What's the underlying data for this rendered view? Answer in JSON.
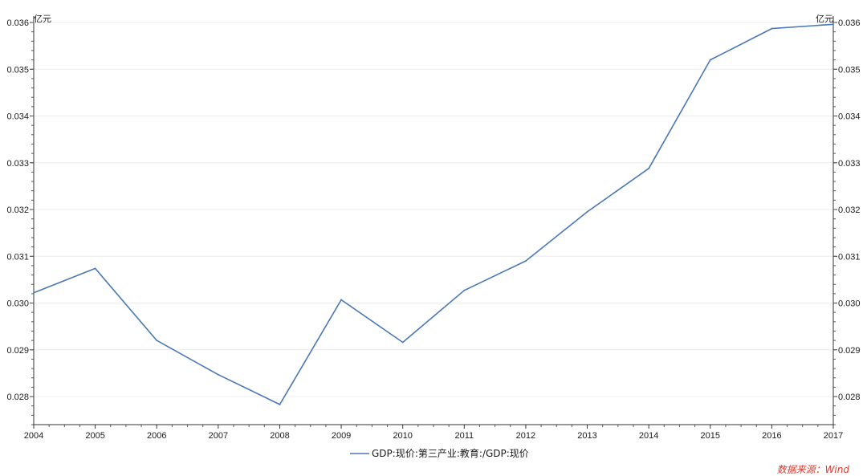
{
  "chart_data": {
    "type": "line",
    "x": [
      2004,
      2005,
      2006,
      2007,
      2008,
      2009,
      2010,
      2011,
      2012,
      2013,
      2014,
      2015,
      2016,
      2017
    ],
    "series": [
      {
        "name": "GDP:现价:第三产业:教育:/GDP:现价",
        "color": "#4a78b5",
        "values": [
          0.03022,
          0.03074,
          0.0292,
          0.02847,
          0.02783,
          0.03007,
          0.02916,
          0.03027,
          0.0309,
          0.03195,
          0.03288,
          0.0352,
          0.03587,
          0.03596
        ]
      }
    ],
    "ylim": [
      0.0274,
      0.036
    ],
    "yticks": [
      "0.028",
      "0.029",
      "0.030",
      "0.031",
      "0.032",
      "0.033",
      "0.034",
      "0.035",
      "0.036"
    ],
    "xticks": [
      "2004",
      "2005",
      "2006",
      "2007",
      "2008",
      "2009",
      "2010",
      "2011",
      "2012",
      "2013",
      "2014",
      "2015",
      "2016",
      "2017"
    ],
    "y_unit_left": "亿元",
    "y_unit_right": "亿元",
    "grid": true,
    "legend_position": "bottom"
  },
  "source_note": "数据来源：Wind"
}
